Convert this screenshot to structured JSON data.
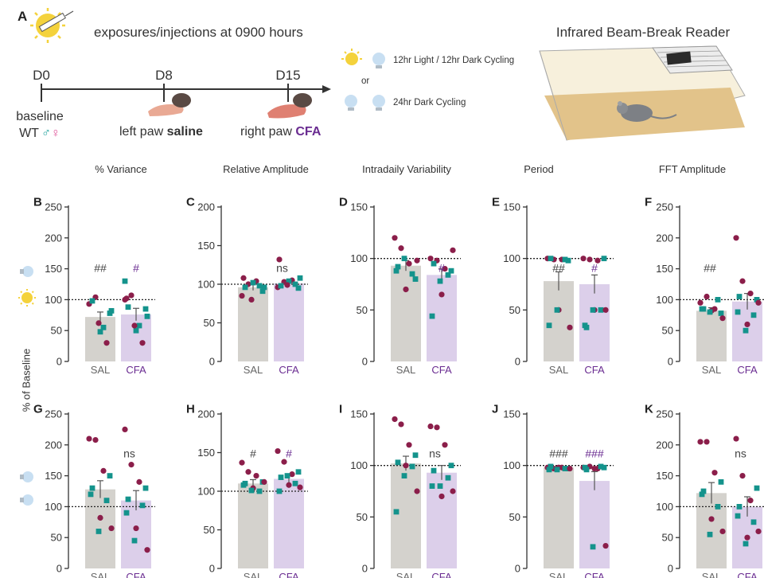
{
  "colors": {
    "sal_bar": "#d4d2cd",
    "cfa_bar": "#dccfea",
    "dot_maroon": "#8b1e4a",
    "dot_teal": "#14938c",
    "cfa_text": "#6a2c91",
    "axis": "#333333",
    "male": "#2aa6a0",
    "female": "#e0559a"
  },
  "header": {
    "panel_letter": "A",
    "exposure_text": "exposures/injections at 0900 hours",
    "d0": "D0",
    "d8": "D8",
    "d15": "D15",
    "baseline": "baseline",
    "wt": "WT",
    "male_symbol": "♂",
    "female_symbol": "♀",
    "left_paw_prefix": "left paw ",
    "left_paw_bold": "saline",
    "right_paw_prefix": "right paw ",
    "right_paw_bold": "CFA",
    "light_cycle": "12hr Light / 12hr Dark Cycling",
    "or": "or",
    "dark_cycle": "24hr Dark Cycling",
    "reader_title": "Infrared Beam-Break Reader"
  },
  "column_titles": [
    "% Variance",
    "Relative Amplitude",
    "Intradaily Variability",
    "Period",
    "FFT Amplitude"
  ],
  "y_axis_label": "% of Baseline",
  "chart_data": [
    {
      "type": "bar",
      "panel": "B",
      "title": "% Variance",
      "row": "light",
      "ymax": 250,
      "ticks": [
        0,
        50,
        100,
        150,
        200,
        250
      ],
      "categories": [
        "SAL",
        "CFA"
      ],
      "values": [
        72,
        76
      ],
      "sem": [
        8,
        10
      ],
      "annotations": [
        "##",
        "#"
      ],
      "points": [
        [
          [
            93,
            104
          ],
          [
            55,
            78,
            98
          ],
          [
            30,
            48,
            62,
            82
          ]
        ],
        [
          [
            100,
            107
          ],
          [
            58,
            85,
            88
          ],
          [
            30,
            50,
            58,
            73,
            102,
            130
          ]
        ]
      ]
    },
    {
      "type": "bar",
      "panel": "C",
      "title": "Relative Amplitude",
      "row": "light",
      "ymax": 200,
      "ticks": [
        0,
        50,
        100,
        150,
        200
      ],
      "categories": [
        "SAL",
        "CFA"
      ],
      "values": [
        96,
        101
      ],
      "sem": [
        4,
        3
      ],
      "annotations": [
        "ns",
        ""
      ],
      "annotation_center": "ns",
      "points": [
        [
          [
            85,
            100,
            104
          ],
          [
            91,
            96,
            98,
            102
          ],
          [
            80,
            96,
            108
          ]
        ],
        [
          [
            96,
            103,
            105
          ],
          [
            95,
            98,
            100,
            104
          ],
          [
            99,
            108,
            132
          ]
        ]
      ]
    },
    {
      "type": "bar",
      "panel": "D",
      "title": "Intradaily Variability",
      "row": "light",
      "ymax": 150,
      "ticks": [
        0,
        50,
        100,
        150
      ],
      "categories": [
        "SAL",
        "CFA"
      ],
      "values": [
        93,
        84
      ],
      "sem": [
        5,
        6
      ],
      "annotations": [
        "",
        "#"
      ],
      "points": [
        [
          [
            120,
            110,
            95
          ],
          [
            80,
            92,
            85
          ],
          [
            70,
            100,
            98,
            88
          ]
        ],
        [
          [
            100,
            98,
            90
          ],
          [
            88,
            95,
            84
          ],
          [
            65,
            78,
            108,
            44
          ]
        ]
      ]
    },
    {
      "type": "bar",
      "panel": "E",
      "title": "Period",
      "row": "light",
      "ymax": 150,
      "ticks": [
        0,
        50,
        100,
        150
      ],
      "categories": [
        "SAL",
        "CFA"
      ],
      "values": [
        78,
        75
      ],
      "sem": [
        9,
        9
      ],
      "annotations": [
        "##",
        "#"
      ],
      "points": [
        [
          [
            100,
            99,
            99
          ],
          [
            98,
            100,
            99
          ],
          [
            50,
            50,
            33,
            35
          ]
        ],
        [
          [
            100,
            99,
            98
          ],
          [
            100,
            33,
            50
          ],
          [
            50,
            50,
            50,
            35
          ]
        ]
      ]
    },
    {
      "type": "bar",
      "panel": "F",
      "title": "FFT Amplitude",
      "row": "light",
      "ymax": 250,
      "ticks": [
        0,
        50,
        100,
        150,
        200,
        250
      ],
      "categories": [
        "SAL",
        "CFA"
      ],
      "values": [
        82,
        97
      ],
      "sem": [
        5,
        13
      ],
      "annotations": [
        "##",
        ""
      ],
      "annotation_left": "##",
      "points": [
        [
          [
            95,
            105,
            85
          ],
          [
            78,
            85,
            100
          ],
          [
            82,
            80,
            70,
            85
          ]
        ],
        [
          [
            200,
            130,
            110
          ],
          [
            100,
            105,
            75
          ],
          [
            60,
            50,
            95,
            80
          ]
        ]
      ]
    },
    {
      "type": "bar",
      "panel": "G",
      "title": "% Variance",
      "row": "dark",
      "ymax": 250,
      "ticks": [
        0,
        50,
        100,
        150,
        200,
        250
      ],
      "categories": [
        "SAL",
        "CFA"
      ],
      "values": [
        128,
        110
      ],
      "sem": [
        14,
        16
      ],
      "annotations": [
        "",
        "ns"
      ],
      "annotation_center": "ns",
      "points": [
        [
          [
            210,
            208,
            158
          ],
          [
            150,
            130,
            110
          ],
          [
            82,
            60,
            65,
            120
          ]
        ],
        [
          [
            225,
            168,
            140
          ],
          [
            130,
            112,
            102
          ],
          [
            65,
            45,
            30,
            90
          ]
        ]
      ]
    },
    {
      "type": "bar",
      "panel": "H",
      "title": "Relative Amplitude",
      "row": "dark",
      "ymax": 200,
      "ticks": [
        0,
        50,
        100,
        150,
        200
      ],
      "categories": [
        "SAL",
        "CFA"
      ],
      "values": [
        110,
        116
      ],
      "sem": [
        5,
        5
      ],
      "annotations": [
        "#",
        "#"
      ],
      "points": [
        [
          [
            137,
            125,
            120
          ],
          [
            112,
            110,
            100
          ],
          [
            104,
            101,
            112,
            108
          ]
        ],
        [
          [
            152,
            138,
            122
          ],
          [
            125,
            118,
            110
          ],
          [
            108,
            120,
            105,
            100
          ]
        ]
      ]
    },
    {
      "type": "bar",
      "panel": "I",
      "title": "Intradaily Variability",
      "row": "dark",
      "ymax": 150,
      "ticks": [
        0,
        50,
        100,
        150
      ],
      "categories": [
        "SAL",
        "CFA"
      ],
      "values": [
        102,
        93
      ],
      "sem": [
        7,
        7
      ],
      "annotations": [
        "ns",
        ""
      ],
      "annotation_center": "ns",
      "points": [
        [
          [
            145,
            140,
            120
          ],
          [
            110,
            103,
            99
          ],
          [
            100,
            90,
            75,
            55
          ]
        ],
        [
          [
            138,
            137,
            120
          ],
          [
            100,
            95,
            88
          ],
          [
            70,
            80,
            75,
            80
          ]
        ]
      ]
    },
    {
      "type": "bar",
      "panel": "J",
      "title": "Period",
      "row": "dark",
      "ymax": 150,
      "ticks": [
        0,
        50,
        100,
        150
      ],
      "categories": [
        "SAL",
        "CFA"
      ],
      "values": [
        98,
        85
      ],
      "sem": [
        1,
        9
      ],
      "annotations": [
        "###",
        "###"
      ],
      "points": [
        [
          [
            98,
            97,
            98
          ],
          [
            97,
            99,
            97
          ],
          [
            98,
            96,
            97,
            96
          ]
        ],
        [
          [
            98,
            99,
            97
          ],
          [
            98,
            96,
            99
          ],
          [
            97,
            21,
            22,
            98
          ]
        ]
      ]
    },
    {
      "type": "bar",
      "panel": "K",
      "title": "FFT Amplitude",
      "row": "dark",
      "ymax": 250,
      "ticks": [
        0,
        50,
        100,
        150,
        200,
        250
      ],
      "categories": [
        "SAL",
        "CFA"
      ],
      "values": [
        122,
        100
      ],
      "sem": [
        17,
        16
      ],
      "annotations": [
        "",
        "ns"
      ],
      "annotation_center": "ns",
      "points": [
        [
          [
            205,
            205,
            155
          ],
          [
            140,
            125,
            100
          ],
          [
            80,
            55,
            60,
            120
          ]
        ],
        [
          [
            210,
            150,
            110
          ],
          [
            130,
            100,
            75
          ],
          [
            50,
            40,
            60,
            85
          ]
        ]
      ]
    }
  ]
}
